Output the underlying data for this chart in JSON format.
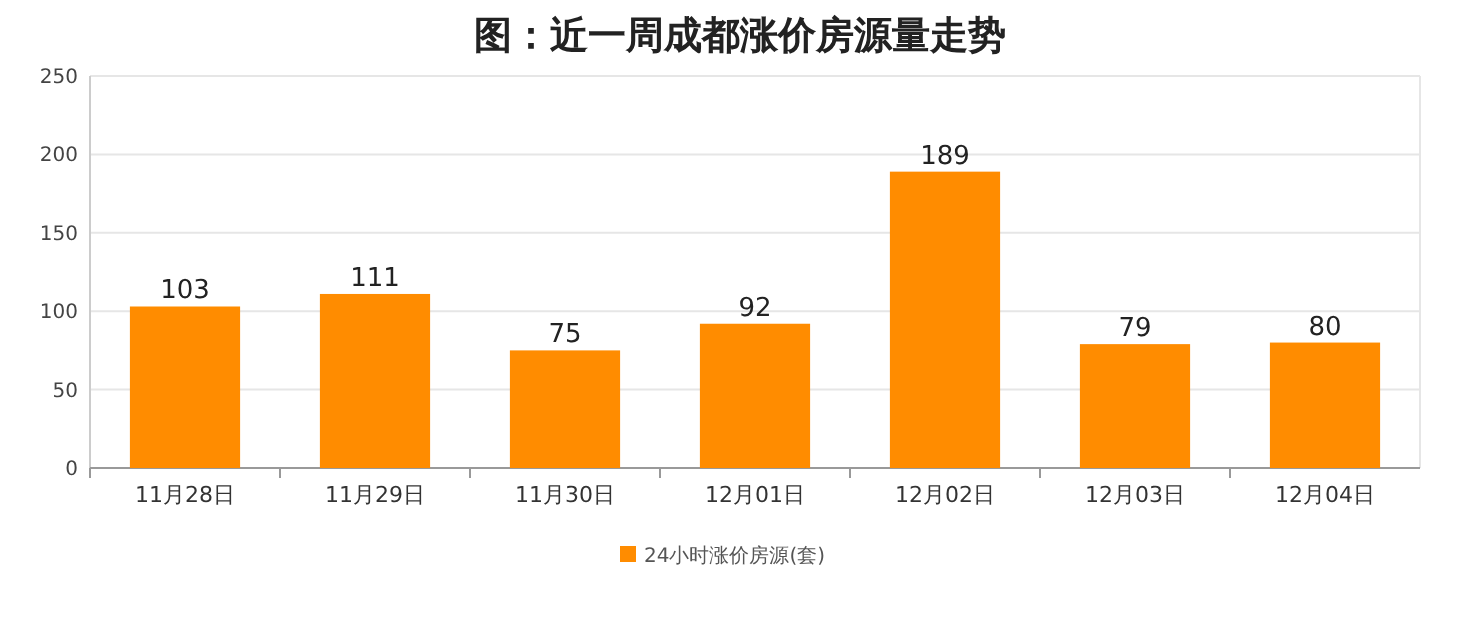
{
  "chart_data": {
    "type": "bar",
    "title": "图：近一周成都涨价房源量走势",
    "categories": [
      "11月28日",
      "11月29日",
      "11月30日",
      "12月01日",
      "12月02日",
      "12月03日",
      "12月04日"
    ],
    "series": [
      {
        "name": "24小时涨价房源(套)",
        "color": "#ff8c00",
        "values": [
          103,
          111,
          75,
          92,
          189,
          79,
          80
        ]
      }
    ],
    "ylim": [
      0,
      250
    ],
    "yticks": [
      0,
      50,
      100,
      150,
      200,
      250
    ],
    "grid": "y",
    "legend": "bottom",
    "data_labels": true
  }
}
